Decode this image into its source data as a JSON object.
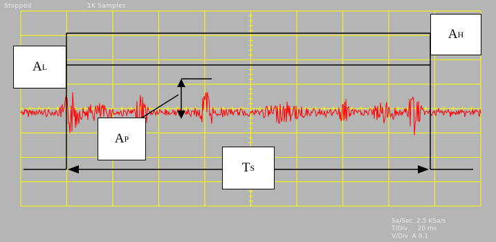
{
  "status": {
    "state": "Stopped",
    "samples": "1K Samples"
  },
  "readouts": {
    "rate": "Sa/Sec  2.5 KSa/s",
    "tdiv": "T/Div     20 ms",
    "vdiv": "V/Div  A 0.1"
  },
  "labels": {
    "a_high": {
      "main": "A",
      "sub": "H"
    },
    "a_low": {
      "main": "A",
      "sub": "L"
    },
    "a_peak": {
      "main": "A",
      "sub": "P"
    },
    "t_span": {
      "main": "T",
      "sub": "S"
    }
  },
  "colors": {
    "background": "#b5b5b5",
    "grid": "#ffff00",
    "trace": "#ff0000",
    "annotation": "#000000",
    "text": "#ececec"
  }
}
